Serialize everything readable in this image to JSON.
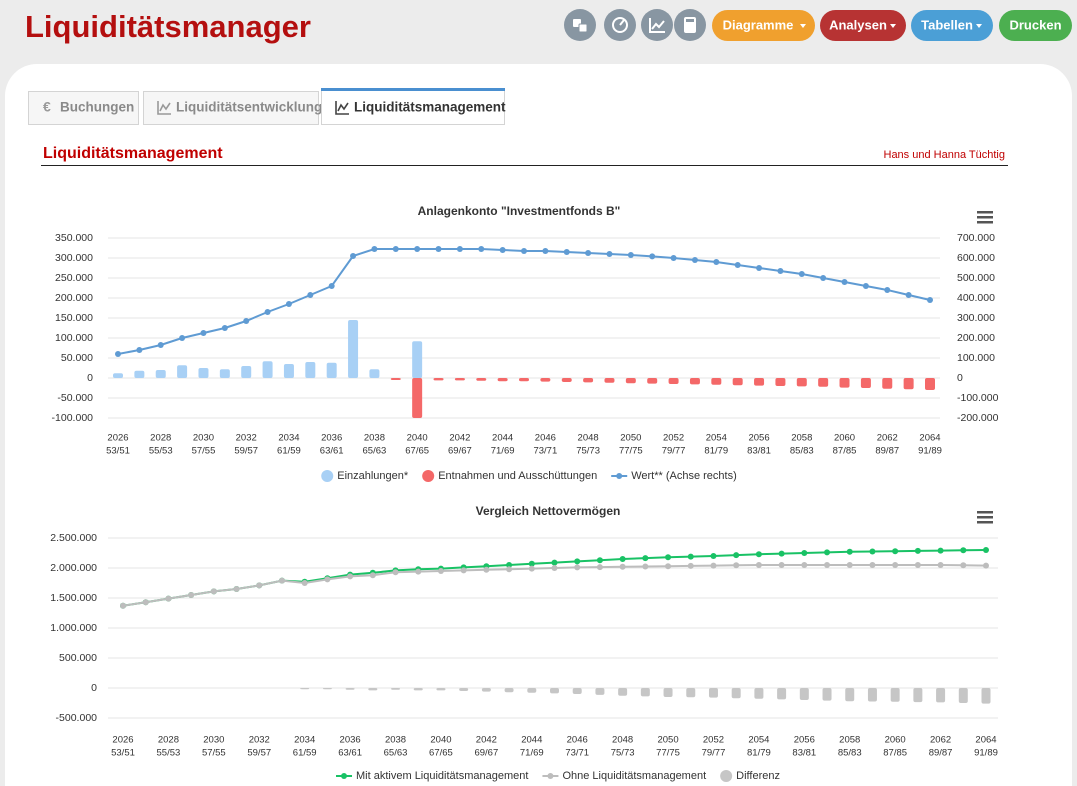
{
  "header": {
    "title": "Liquiditätsmanager",
    "buttons": [
      "Diagramme",
      "Analysen",
      "Tabellen",
      "Drucken"
    ]
  },
  "tabs": [
    "Buchungen",
    "Liquiditätsentwicklung",
    "Liquiditätsmanagement"
  ],
  "section": {
    "title": "Liquiditätsmanagement",
    "client": "Hans und Hanna Tüchtig"
  },
  "chart_data": [
    {
      "type": "combo",
      "title": "Anlagenkonto \"Investmentfonds B\"",
      "categories": [
        "2026",
        null,
        "2028",
        null,
        "2030",
        null,
        "2032",
        null,
        "2034",
        null,
        "2036",
        null,
        "2038",
        null,
        "2040",
        null,
        "2042",
        null,
        "2044",
        null,
        "2046",
        null,
        "2048",
        null,
        "2050",
        null,
        "2052",
        null,
        "2054",
        null,
        "2056",
        null,
        "2058",
        null,
        "2060",
        null,
        "2062",
        null,
        "2064"
      ],
      "sub_categories": [
        "53/51",
        null,
        "55/53",
        null,
        "57/55",
        null,
        "59/57",
        null,
        "61/59",
        null,
        "63/61",
        null,
        "65/63",
        null,
        "67/65",
        null,
        "69/67",
        null,
        "71/69",
        null,
        "73/71",
        null,
        "75/73",
        null,
        "77/75",
        null,
        "79/77",
        null,
        "81/79",
        null,
        "83/81",
        null,
        "85/83",
        null,
        "87/85",
        null,
        "89/87",
        null,
        "91/89"
      ],
      "ylim": [
        -100000,
        350000
      ],
      "yticks": [
        {
          "value": -100000,
          "label": "-100.000"
        },
        {
          "value": -50000,
          "label": "-50.000"
        },
        0,
        {
          "value": 50000,
          "label": "50.000"
        },
        {
          "value": 100000,
          "label": "100.000"
        },
        {
          "value": 150000,
          "label": "150.000"
        },
        {
          "value": 200000,
          "label": "200.000"
        },
        {
          "value": 250000,
          "label": "250.000"
        },
        {
          "value": 300000,
          "label": "300.000"
        },
        {
          "value": 350000,
          "label": "350.000"
        }
      ],
      "y2lim": [
        -200000,
        700000
      ],
      "y2ticks": [
        {
          "value": -200000,
          "label": "-200.000"
        },
        {
          "value": -100000,
          "label": "-100.000"
        },
        0,
        {
          "value": 100000,
          "label": "100.000"
        },
        {
          "value": 200000,
          "label": "200.000"
        },
        {
          "value": 300000,
          "label": "300.000"
        },
        {
          "value": 400000,
          "label": "400.000"
        },
        {
          "value": 500000,
          "label": "500.000"
        },
        {
          "value": 600000,
          "label": "600.000"
        },
        {
          "value": 700000,
          "label": "700.000"
        }
      ],
      "grid": true,
      "series": [
        {
          "name": "Einzahlungen*",
          "type": "bar",
          "color": "#a8d0f5",
          "values": [
            12000,
            18000,
            20000,
            32000,
            25000,
            22000,
            30000,
            42000,
            35000,
            40000,
            38000,
            145000,
            22000,
            0,
            92000,
            0,
            0,
            0,
            0,
            0,
            0,
            0,
            0,
            0,
            0,
            0,
            0,
            0,
            0,
            0,
            0,
            0,
            0,
            0,
            0,
            0,
            0,
            0,
            0
          ]
        },
        {
          "name": "Entnahmen und Ausschüttungen",
          "type": "bar",
          "color": "#f46868",
          "values": [
            0,
            0,
            0,
            0,
            0,
            0,
            0,
            0,
            0,
            0,
            0,
            0,
            0,
            -5000,
            -100000,
            -6000,
            -6000,
            -7000,
            -8000,
            -8000,
            -9000,
            -10000,
            -11000,
            -12000,
            -13000,
            -14000,
            -15000,
            -16000,
            -17000,
            -18000,
            -19000,
            -20000,
            -21000,
            -22000,
            -24000,
            -25000,
            -27000,
            -28000,
            -30000
          ]
        },
        {
          "name": "Wert** (Achse rechts)",
          "type": "line",
          "axis": "y2",
          "color": "#5f9bd3",
          "values": [
            120000,
            140000,
            165000,
            200000,
            225000,
            250000,
            285000,
            330000,
            370000,
            415000,
            460000,
            610000,
            645000,
            645000,
            645000,
            645000,
            645000,
            645000,
            640000,
            635000,
            635000,
            630000,
            625000,
            620000,
            615000,
            608000,
            600000,
            590000,
            580000,
            565000,
            550000,
            535000,
            520000,
            500000,
            480000,
            460000,
            440000,
            415000,
            390000
          ]
        }
      ]
    },
    {
      "type": "combo",
      "title": "Vergleich Nettovermögen",
      "categories": [
        "2026",
        null,
        "2028",
        null,
        "2030",
        null,
        "2032",
        null,
        "2034",
        null,
        "2036",
        null,
        "2038",
        null,
        "2040",
        null,
        "2042",
        null,
        "2044",
        null,
        "2046",
        null,
        "2048",
        null,
        "2050",
        null,
        "2052",
        null,
        "2054",
        null,
        "2056",
        null,
        "2058",
        null,
        "2060",
        null,
        "2062",
        null,
        "2064"
      ],
      "sub_categories": [
        "53/51",
        null,
        "55/53",
        null,
        "57/55",
        null,
        "59/57",
        null,
        "61/59",
        null,
        "63/61",
        null,
        "65/63",
        null,
        "67/65",
        null,
        "69/67",
        null,
        "71/69",
        null,
        "73/71",
        null,
        "75/73",
        null,
        "77/75",
        null,
        "79/77",
        null,
        "81/79",
        null,
        "83/81",
        null,
        "85/83",
        null,
        "87/85",
        null,
        "89/87",
        null,
        "91/89"
      ],
      "ylim": [
        -500000,
        2500000
      ],
      "yticks": [
        {
          "value": -500000,
          "label": "-500.000"
        },
        0,
        {
          "value": 500000,
          "label": "500.000"
        },
        {
          "value": 1000000,
          "label": "1.000.000"
        },
        {
          "value": 1500000,
          "label": "1.500.000"
        },
        {
          "value": 2000000,
          "label": "2.000.000"
        },
        {
          "value": 2500000,
          "label": "2.500.000"
        }
      ],
      "grid": true,
      "series": [
        {
          "name": "Mit aktivem Liquiditätsmanagement",
          "type": "line",
          "color": "#19c265",
          "values": [
            1370000,
            1430000,
            1490000,
            1550000,
            1610000,
            1650000,
            1710000,
            1790000,
            1770000,
            1830000,
            1890000,
            1920000,
            1960000,
            1980000,
            1990000,
            2010000,
            2030000,
            2050000,
            2070000,
            2090000,
            2110000,
            2130000,
            2150000,
            2165000,
            2180000,
            2190000,
            2200000,
            2215000,
            2230000,
            2240000,
            2250000,
            2260000,
            2270000,
            2275000,
            2280000,
            2285000,
            2290000,
            2295000,
            2300000
          ]
        },
        {
          "name": "Ohne Liquiditätsmanagement",
          "type": "line",
          "color": "#bdbdbd",
          "values": [
            1370000,
            1430000,
            1490000,
            1550000,
            1610000,
            1650000,
            1710000,
            1790000,
            1750000,
            1810000,
            1860000,
            1880000,
            1930000,
            1940000,
            1950000,
            1960000,
            1970000,
            1980000,
            1990000,
            2000000,
            2010000,
            2015000,
            2020000,
            2025000,
            2030000,
            2035000,
            2040000,
            2045000,
            2050000,
            2050000,
            2050000,
            2050000,
            2050000,
            2050000,
            2050000,
            2050000,
            2050000,
            2045000,
            2040000
          ]
        },
        {
          "name": "Differenz",
          "type": "bar",
          "color": "#c6c6c6",
          "values": [
            0,
            0,
            0,
            0,
            0,
            0,
            0,
            0,
            -20000,
            -20000,
            -30000,
            -40000,
            -30000,
            -40000,
            -40000,
            -50000,
            -60000,
            -70000,
            -80000,
            -90000,
            -100000,
            -115000,
            -130000,
            -140000,
            -150000,
            -155000,
            -160000,
            -170000,
            -180000,
            -190000,
            -200000,
            -210000,
            -220000,
            -225000,
            -230000,
            -235000,
            -240000,
            -250000,
            -260000
          ]
        }
      ]
    }
  ]
}
